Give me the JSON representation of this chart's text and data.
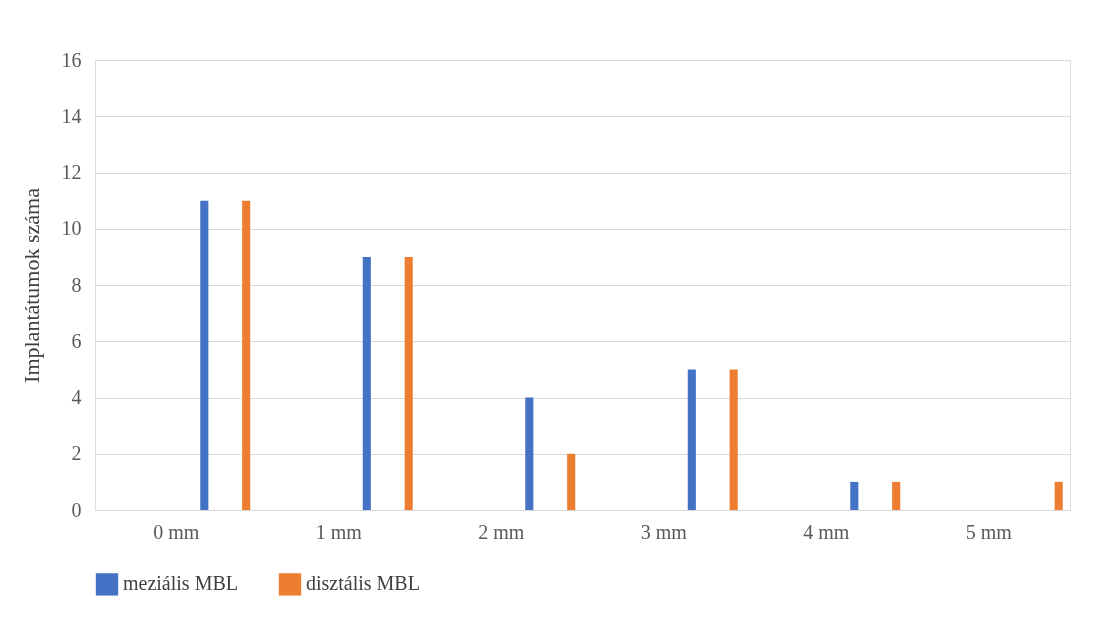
{
  "chart_data": {
    "type": "bar",
    "ylabel": "Implantátumok száma",
    "categories": [
      "0 mm",
      "1 mm",
      "2 mm",
      "3 mm",
      "4 mm",
      "5 mm"
    ],
    "series": [
      {
        "name": "meziális MBL",
        "color": "#4472c4",
        "values": [
          11,
          9,
          4,
          5,
          1,
          0
        ]
      },
      {
        "name": "disztális MBL",
        "color": "#ed7d31",
        "values": [
          11,
          9,
          2,
          5,
          1,
          1
        ]
      }
    ],
    "ylim": [
      0,
      16
    ],
    "yticks": [
      0,
      2,
      4,
      6,
      8,
      10,
      12,
      14,
      16
    ],
    "grid": "y",
    "legend": "bottom"
  }
}
